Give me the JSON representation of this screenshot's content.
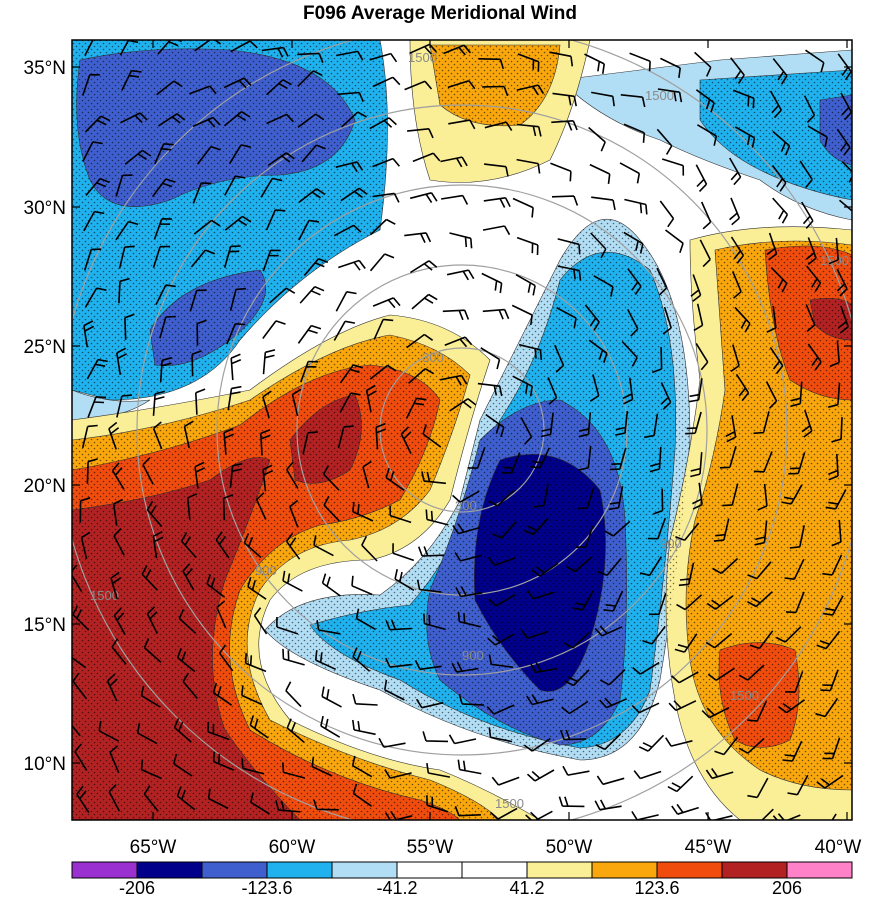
{
  "title": "F096 Average Meridional Wind",
  "map": {
    "lat_labels": [
      "35°N",
      "30°N",
      "25°N",
      "20°N",
      "15°N",
      "10°N"
    ],
    "lon_labels": [
      "65°W",
      "60°W",
      "55°W",
      "50°W",
      "45°W",
      "40°W"
    ],
    "ring_labels": [
      "300",
      "300",
      "900",
      "900",
      "900",
      "1500",
      "1500",
      "1500",
      "1500",
      "1500",
      "1500"
    ]
  },
  "colorbar": {
    "labels": [
      "-206",
      "-123.6",
      "-41.2",
      "41.2",
      "123.6",
      "206"
    ],
    "colors": [
      "#9b30d0",
      "#00008b",
      "#3f5fcf",
      "#1fb2ee",
      "#b2def5",
      "#ffffff",
      "#ffffff",
      "#faee96",
      "#f9a70d",
      "#f04c0e",
      "#b22222",
      "#ff82c8"
    ]
  },
  "palette": {
    "c_neg_ext": "#9b30d0",
    "c_neg3": "#00008b",
    "c_neg2": "#3f5fcf",
    "c_neg1": "#1fb2ee",
    "c_neg0": "#b2def5",
    "c_zero": "#ffffff",
    "c_pos0": "#faee96",
    "c_pos1": "#f9a70d",
    "c_pos2": "#f04c0e",
    "c_pos3": "#b22222",
    "c_pos_ext": "#ff82c8",
    "ring_color": "#a0a0a0"
  }
}
